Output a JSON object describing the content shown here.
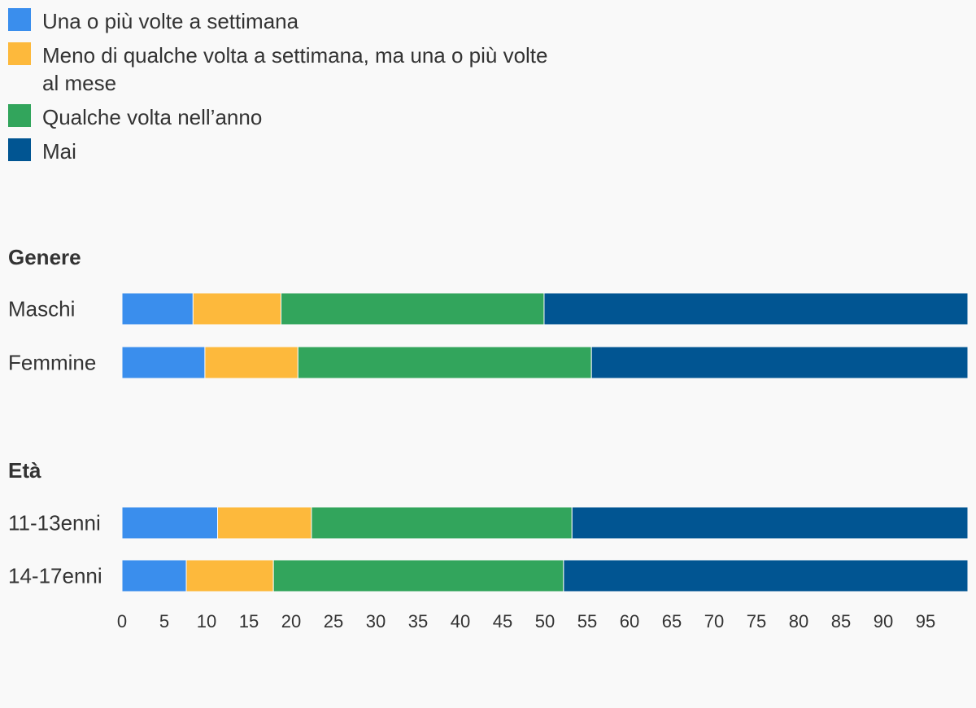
{
  "chart_data": {
    "type": "bar",
    "orientation": "horizontal",
    "stacked": true,
    "legend_position": "top-left",
    "xlim": [
      0,
      100
    ],
    "x_ticks": [
      "0",
      "5",
      "10",
      "15",
      "20",
      "25",
      "30",
      "35",
      "40",
      "45",
      "50",
      "55",
      "60",
      "65",
      "70",
      "75",
      "80",
      "85",
      "90",
      "95"
    ],
    "series": [
      {
        "name": "Una o più volte a settimana",
        "color": "#3a8eed"
      },
      {
        "name": "Meno di qualche volta a settimana, ma una o più volte al mese",
        "color": "#fdb93c"
      },
      {
        "name": "Qualche volta nell’anno",
        "color": "#32a55c"
      },
      {
        "name": "Mai",
        "color": "#015592"
      }
    ],
    "groups": [
      {
        "title": "Genere",
        "rows": [
          {
            "label": "Maschi",
            "values": [
              8.4,
              10.4,
              31.1,
              50.1
            ]
          },
          {
            "label": "Femmine",
            "values": [
              9.8,
              11.0,
              34.7,
              44.5
            ]
          }
        ]
      },
      {
        "title": "Età",
        "rows": [
          {
            "label": "11-13enni",
            "values": [
              11.3,
              11.1,
              30.8,
              46.8
            ]
          },
          {
            "label": "14-17enni",
            "values": [
              7.6,
              10.3,
              34.3,
              47.8
            ]
          }
        ]
      }
    ]
  }
}
